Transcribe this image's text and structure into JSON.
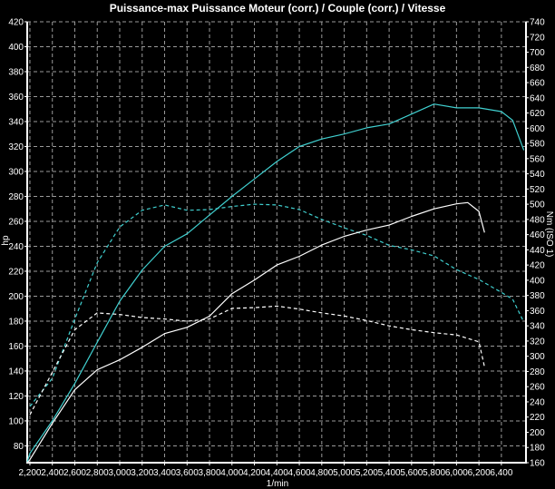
{
  "chart_data": {
    "type": "line",
    "title": "Puissance-max Puissance Moteur (corr.) / Couple (corr.) / Vitesse",
    "xlabel": "1/min",
    "ylabel": "hp",
    "y2label": "Nm (ISO 1)",
    "xlim": [
      2176,
      6619
    ],
    "ylim": [
      66.5,
      420
    ],
    "y2lim": [
      160,
      740
    ],
    "grid": true,
    "background": "#000000",
    "x_ticks": [
      2200,
      2400,
      2600,
      2800,
      3000,
      3200,
      3400,
      3600,
      3800,
      4000,
      4200,
      4400,
      4600,
      4800,
      5000,
      5200,
      5400,
      5600,
      5800,
      6000,
      6200,
      6400
    ],
    "x_tick_labels": [
      "2,200",
      "2,400",
      "2,600",
      "2,800",
      "3,000",
      "3,200",
      "3,400",
      "3,600",
      "3,800",
      "4,000",
      "4,200",
      "4,400",
      "4,600",
      "4,800",
      "5,000",
      "5,200",
      "5,400",
      "5,600",
      "5,800",
      "6,000",
      "6,200",
      "6,400"
    ],
    "y_ticks": [
      80,
      100,
      120,
      140,
      160,
      180,
      200,
      220,
      240,
      260,
      280,
      300,
      320,
      340,
      360,
      380,
      400,
      420
    ],
    "y2_ticks": [
      160,
      180,
      200,
      220,
      240,
      260,
      280,
      300,
      320,
      340,
      360,
      380,
      400,
      420,
      440,
      460,
      480,
      500,
      520,
      540,
      560,
      580,
      600,
      620,
      640,
      660,
      680,
      700,
      720,
      740
    ],
    "series": [
      {
        "axis": "left",
        "color": "#40d0d0",
        "dash": false,
        "x": [
          2176,
          2200,
          2400,
          2600,
          2800,
          3000,
          3200,
          3400,
          3600,
          3800,
          4000,
          4200,
          4400,
          4600,
          4800,
          5000,
          5200,
          5400,
          5600,
          5800,
          6000,
          6200,
          6400,
          6500,
          6600
        ],
        "y": [
          67,
          74,
          100,
          130,
          163,
          196,
          221,
          240,
          250,
          265,
          280,
          294,
          308,
          320,
          326,
          330,
          335,
          338,
          346,
          354,
          351,
          351,
          348,
          341,
          317
        ]
      },
      {
        "axis": "right",
        "color": "#40d0d0",
        "dash": true,
        "x": [
          2200,
          2400,
          2600,
          2800,
          3000,
          3200,
          3400,
          3600,
          3800,
          4000,
          4200,
          4400,
          4600,
          4800,
          5000,
          5200,
          5400,
          5600,
          5800,
          6000,
          6200,
          6400,
          6500,
          6600
        ],
        "y": [
          234,
          271,
          349,
          423,
          470,
          492,
          499,
          492,
          493,
          497,
          500,
          499,
          493,
          480,
          469,
          459,
          446,
          440,
          432,
          414,
          401,
          384,
          375,
          345
        ]
      },
      {
        "axis": "left",
        "color": "#ffffff",
        "dash": false,
        "x": [
          2180,
          2200,
          2400,
          2600,
          2800,
          3000,
          3200,
          3400,
          3600,
          3800,
          4000,
          4200,
          4400,
          4600,
          4800,
          5000,
          5200,
          5400,
          5600,
          5800,
          6000,
          6100,
          6200,
          6250
        ],
        "y": [
          67,
          69,
          98,
          125,
          141,
          149,
          159,
          170,
          175,
          184,
          202,
          213,
          225,
          232,
          241,
          248,
          253,
          257,
          264,
          270,
          274,
          275,
          268,
          251
        ]
      },
      {
        "axis": "right",
        "color": "#ffffff",
        "dash": true,
        "x": [
          2200,
          2400,
          2600,
          2800,
          3000,
          3200,
          3400,
          3600,
          3800,
          4000,
          4200,
          4400,
          4600,
          4800,
          5000,
          5200,
          5400,
          5600,
          5800,
          6000,
          6200,
          6250
        ],
        "y": [
          223,
          279,
          335,
          357,
          355,
          351,
          349,
          346,
          349,
          363,
          364,
          366,
          362,
          357,
          353,
          347,
          340,
          335,
          331,
          328,
          319,
          286
        ]
      }
    ]
  }
}
